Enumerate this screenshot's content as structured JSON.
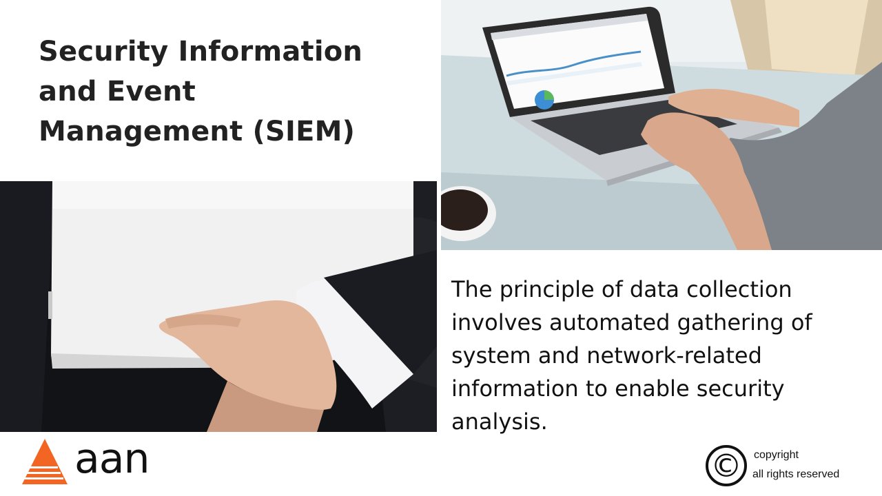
{
  "slide": {
    "title_lines": [
      "Security Information",
      "and Event",
      "Management (SIEM)"
    ],
    "body_lines": [
      "The principle of data collection",
      "involves automated gathering of",
      "system and network-related",
      "information to enable security",
      "analysis."
    ]
  },
  "logo": {
    "text": "aan",
    "icon": "orange-triangle-logo-icon",
    "color": "#f26522"
  },
  "copyright": {
    "symbol": "©",
    "line1": "copyright",
    "line2": "all rights reserved"
  }
}
